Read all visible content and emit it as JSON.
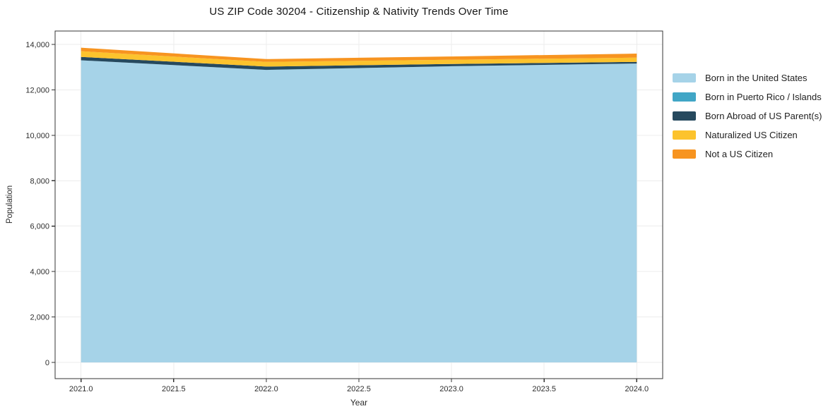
{
  "title": "US ZIP Code 30204 - Citizenship & Nativity Trends Over Time",
  "chart_data": {
    "type": "area",
    "stacked": true,
    "title": "US ZIP Code 30204 - Citizenship & Nativity Trends Over Time",
    "xlabel": "Year",
    "ylabel": "Population",
    "x": [
      2021,
      2022,
      2023,
      2024
    ],
    "series": [
      {
        "name": "Born in the United States",
        "color": "#A6D3E8",
        "values": [
          13300,
          12880,
          13040,
          13160
        ]
      },
      {
        "name": "Born in Puerto Rico / Islands",
        "color": "#41A6C6",
        "values": [
          0,
          0,
          0,
          0
        ]
      },
      {
        "name": "Born Abroad of US Parent(s)",
        "color": "#26495E",
        "values": [
          150,
          145,
          100,
          70
        ]
      },
      {
        "name": "Naturalized US Citizen",
        "color": "#FCC32D",
        "values": [
          250,
          205,
          185,
          190
        ]
      },
      {
        "name": "Not a US Citizen",
        "color": "#F79420",
        "values": [
          155,
          125,
          145,
          175
        ]
      }
    ],
    "xlim": [
      2020.86,
      2024.14
    ],
    "ylim": [
      -715,
      14590
    ],
    "xticks": {
      "values": [
        2021.0,
        2021.5,
        2022.0,
        2022.5,
        2023.0,
        2023.5,
        2024.0
      ],
      "labels": [
        "2021.0",
        "2021.5",
        "2022.0",
        "2022.5",
        "2023.0",
        "2023.5",
        "2024.0"
      ]
    },
    "yticks": {
      "values": [
        0,
        2000,
        4000,
        6000,
        8000,
        10000,
        12000,
        14000
      ],
      "labels": [
        "0",
        "2,000",
        "4,000",
        "6,000",
        "8,000",
        "10,000",
        "12,000",
        "14,000"
      ]
    },
    "grid": true,
    "grid_color": "#ECECEC",
    "axis_color": "#343434",
    "legend_position": "right outside"
  }
}
